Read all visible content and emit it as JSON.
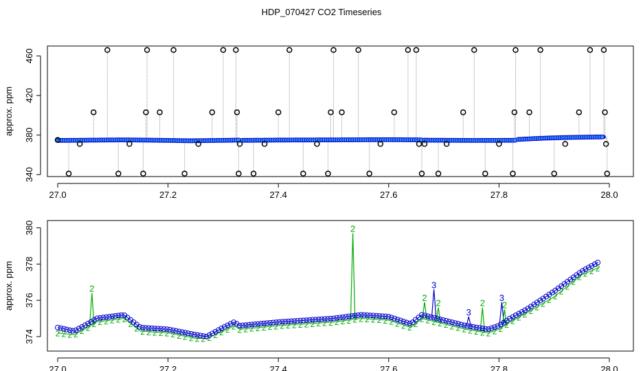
{
  "figure": {
    "title": "HDP_070427  CO2 Timeseries"
  },
  "chart_data": [
    {
      "type": "scatter",
      "title": "",
      "xlabel": "",
      "ylabel": "approx. ppm",
      "xlim": [
        27.0,
        28.0
      ],
      "ylim": [
        338,
        470
      ],
      "xticks": [
        27.0,
        27.2,
        27.4,
        27.6,
        27.8,
        28.0
      ],
      "yticks": [
        340,
        380,
        420,
        460
      ],
      "grid": false,
      "legend": "none",
      "colors": {
        "trace": "#999999",
        "points": "#0000cc",
        "points_fill": "#3399ff",
        "level2": "#00aa00",
        "flag": "#000000"
      },
      "series": [
        {
          "name": "",
          "role": "baseline",
          "segments": [
            {
              "x": [
                27.0,
                27.06,
                27.12,
                27.18,
                27.24,
                27.3,
                27.33
              ],
              "y": [
                374.5,
                374.8,
                375.1,
                374.7,
                374.2,
                374.6,
                374.9
              ]
            },
            {
              "x": [
                27.335,
                27.4,
                27.45,
                27.5,
                27.55,
                27.6,
                27.66
              ],
              "y": [
                374.6,
                374.9,
                375.0,
                375.1,
                375.2,
                375.3,
                375.1
              ]
            },
            {
              "x": [
                27.665,
                27.7,
                27.75,
                27.8,
                27.83
              ],
              "y": [
                374.8,
                374.7,
                374.5,
                374.6,
                374.7
              ]
            },
            {
              "x": [
                27.835,
                27.88,
                27.92,
                27.96,
                27.99
              ],
              "y": [
                375.6,
                376.8,
                377.5,
                377.9,
                378.1
              ]
            }
          ]
        },
        {
          "name": "",
          "role": "flagged",
          "x": [
            27.0,
            27.02,
            27.04,
            27.065,
            27.09,
            27.11,
            27.13,
            27.155,
            27.16,
            27.162,
            27.185,
            27.21,
            27.23,
            27.255,
            27.28,
            27.3,
            27.323,
            27.325,
            27.328,
            27.33,
            27.355,
            27.375,
            27.4,
            27.42,
            27.445,
            27.47,
            27.49,
            27.495,
            27.5,
            27.515,
            27.545,
            27.565,
            27.585,
            27.61,
            27.635,
            27.65,
            27.655,
            27.66,
            27.665,
            27.69,
            27.705,
            27.735,
            27.755,
            27.775,
            27.8,
            27.825,
            27.828,
            27.83,
            27.855,
            27.875,
            27.9,
            27.92,
            27.945,
            27.965,
            27.99,
            27.992,
            27.994,
            27.996
          ],
          "y": [
            375,
            341,
            371,
            403,
            466,
            341,
            371,
            341,
            403,
            466,
            403,
            466,
            341,
            371,
            403,
            466,
            466,
            403,
            341,
            371,
            341,
            371,
            403,
            466,
            341,
            371,
            341,
            403,
            466,
            403,
            466,
            341,
            371,
            403,
            466,
            466,
            371,
            341,
            371,
            341,
            371,
            403,
            466,
            341,
            371,
            341,
            403,
            466,
            403,
            466,
            341,
            371,
            403,
            466,
            466,
            403,
            371,
            341
          ]
        }
      ]
    },
    {
      "type": "line",
      "title": "",
      "xlabel": "",
      "ylabel": "approx. ppm",
      "xlim": [
        27.0,
        28.0
      ],
      "ylim": [
        373.2,
        380.4
      ],
      "xticks": [
        27.0,
        27.2,
        27.4,
        27.6,
        27.8,
        28.0
      ],
      "yticks": [
        374,
        376,
        378,
        380
      ],
      "grid": false,
      "legend": "none",
      "colors": {
        "series1": "#0000cc",
        "series2": "#00aa00"
      },
      "series": [
        {
          "name": "",
          "marker": "o",
          "x": [
            27.0,
            27.03,
            27.06,
            27.07,
            27.12,
            27.15,
            27.2,
            27.25,
            27.27,
            27.3,
            27.32,
            27.33,
            27.4,
            27.5,
            27.55,
            27.6,
            27.64,
            27.66,
            27.7,
            27.74,
            27.78,
            27.8,
            27.82,
            27.85,
            27.9,
            27.95,
            27.98
          ],
          "y": [
            374.5,
            374.3,
            374.8,
            375.0,
            375.2,
            374.5,
            374.4,
            374.1,
            374.0,
            374.5,
            374.8,
            374.6,
            374.8,
            375.0,
            375.2,
            375.1,
            374.7,
            375.2,
            374.9,
            374.6,
            374.4,
            374.6,
            375.0,
            375.5,
            376.5,
            377.6,
            378.1
          ]
        },
        {
          "name": "",
          "marker": "2",
          "x": [
            27.0,
            27.03,
            27.06,
            27.07,
            27.12,
            27.15,
            27.2,
            27.25,
            27.27,
            27.3,
            27.32,
            27.33,
            27.4,
            27.5,
            27.55,
            27.6,
            27.64,
            27.66,
            27.7,
            27.74,
            27.78,
            27.8,
            27.82,
            27.85,
            27.9,
            27.95,
            27.98
          ],
          "y": [
            374.2,
            374.1,
            374.6,
            374.8,
            375.0,
            374.3,
            374.2,
            373.9,
            373.9,
            374.3,
            374.6,
            374.4,
            374.6,
            374.8,
            375.0,
            374.9,
            374.5,
            375.0,
            374.7,
            374.4,
            374.2,
            374.4,
            374.8,
            375.3,
            376.2,
            377.4,
            377.8
          ]
        }
      ],
      "spikes": [
        {
          "series": 2,
          "x": 27.062,
          "y": 376.4,
          "label": "2"
        },
        {
          "series": 2,
          "x": 27.535,
          "y": 379.7,
          "label": "2"
        },
        {
          "series": 2,
          "x": 27.665,
          "y": 375.9,
          "label": "2"
        },
        {
          "series": 1,
          "x": 27.682,
          "y": 376.6,
          "label": "3"
        },
        {
          "series": 2,
          "x": 27.69,
          "y": 375.6,
          "label": "2"
        },
        {
          "series": 1,
          "x": 27.745,
          "y": 375.1,
          "label": "3"
        },
        {
          "series": 2,
          "x": 27.77,
          "y": 375.6,
          "label": "2"
        },
        {
          "series": 1,
          "x": 27.805,
          "y": 375.9,
          "label": "3"
        },
        {
          "series": 2,
          "x": 27.81,
          "y": 375.5,
          "label": "2"
        }
      ]
    }
  ]
}
